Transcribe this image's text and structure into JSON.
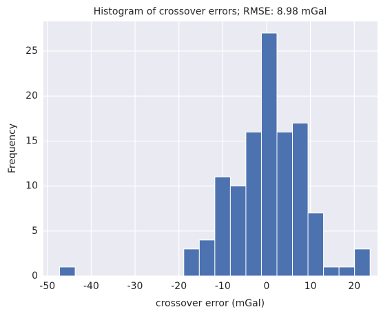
{
  "chart_data": {
    "type": "histogram",
    "title": "Histogram of crossover errors; RMSE: 8.98 mGal",
    "x_label": "crossover error (mGal)",
    "y_label": "Frequency",
    "bins": [
      -47.2,
      -43.66,
      -40.12,
      -36.58,
      -33.04,
      -29.5,
      -25.96,
      -22.42,
      -18.88,
      -15.34,
      -11.8,
      -8.26,
      -4.72,
      -1.18,
      2.36,
      5.9,
      9.44,
      12.98,
      16.52,
      20.06,
      23.6
    ],
    "counts": [
      1,
      0,
      0,
      0,
      0,
      0,
      0,
      0,
      3,
      4,
      11,
      10,
      16,
      27,
      16,
      17,
      7,
      1,
      1,
      3
    ],
    "color": "#4c72b0",
    "xlim": [
      -50.9,
      25.3
    ],
    "xticks": [
      -50,
      -40,
      -30,
      -20,
      -10,
      0,
      10,
      20
    ],
    "ylim": [
      0,
      28.3
    ],
    "yticks": [
      0,
      5,
      10,
      15,
      20,
      25
    ],
    "grid": true
  }
}
